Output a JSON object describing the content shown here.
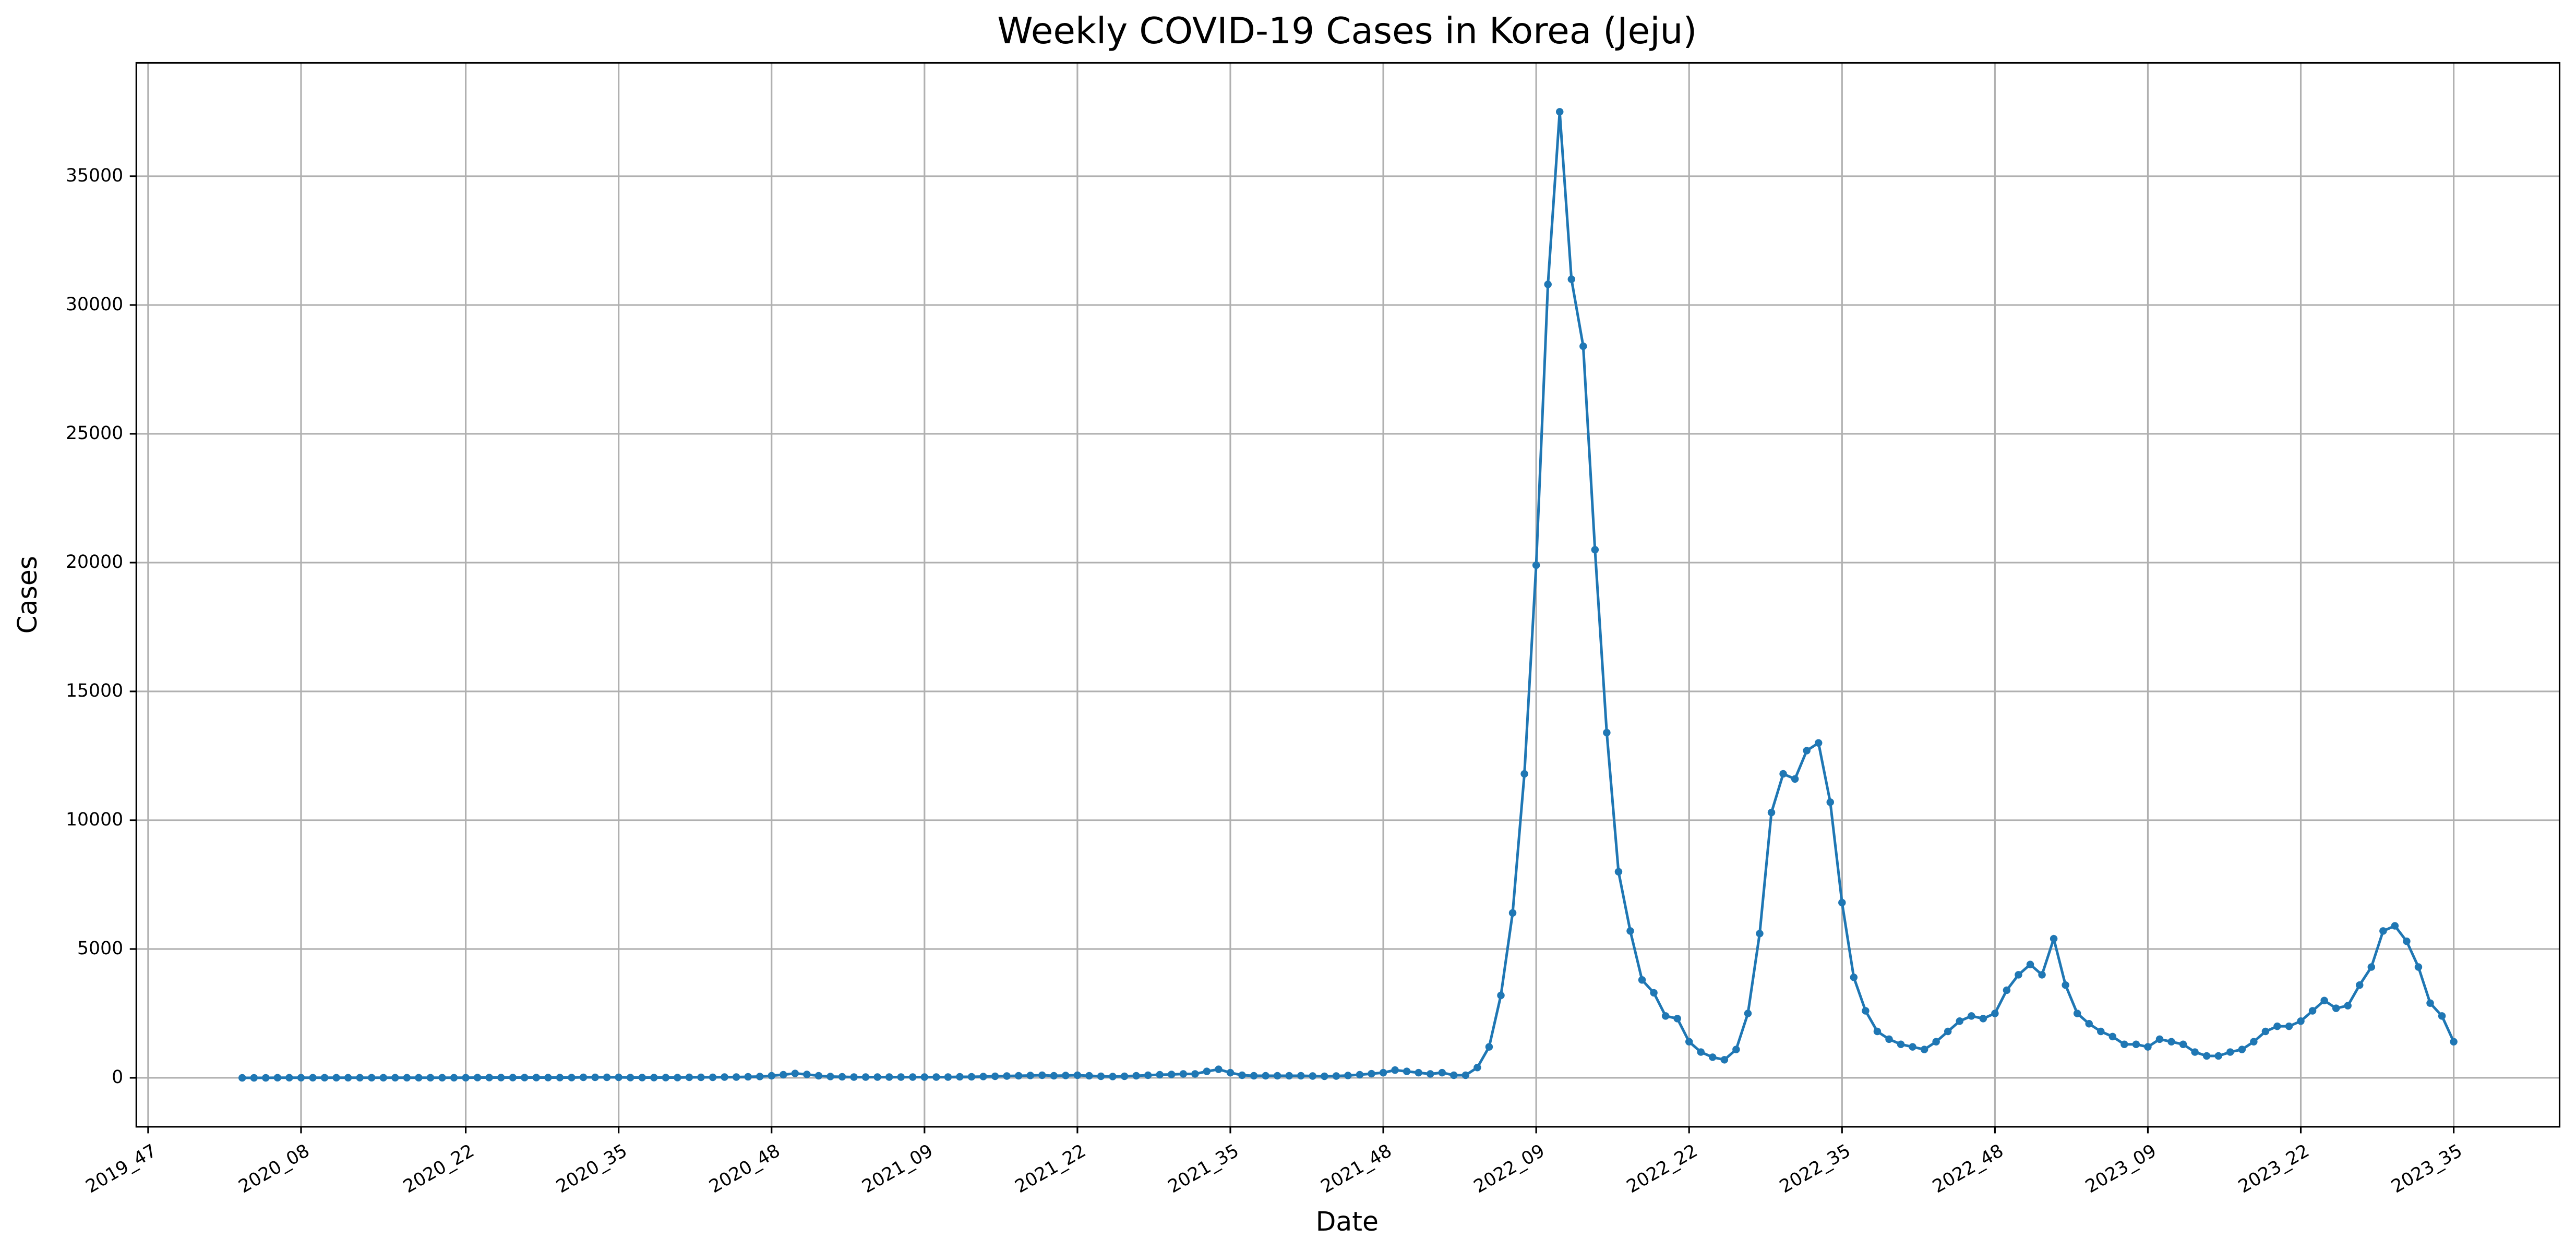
{
  "chart_data": {
    "type": "line",
    "title": "Weekly COVID-19 Cases in Korea (Jeju)",
    "x_label": "Date",
    "y_label": "Cases",
    "color": "#1f77b4",
    "grid": true,
    "x": [
      "2020_03",
      "2020_04",
      "2020_05",
      "2020_06",
      "2020_07",
      "2020_08",
      "2020_09",
      "2020_10",
      "2020_11",
      "2020_12",
      "2020_13",
      "2020_14",
      "2020_15",
      "2020_16",
      "2020_17",
      "2020_18",
      "2020_19",
      "2020_20",
      "2020_21",
      "2020_22",
      "2020_23",
      "2020_24",
      "2020_25",
      "2020_26",
      "2020_27",
      "2020_28",
      "2020_29",
      "2020_30",
      "2020_31",
      "2020_32",
      "2020_33",
      "2020_34",
      "2020_35",
      "2020_36",
      "2020_37",
      "2020_38",
      "2020_39",
      "2020_40",
      "2020_41",
      "2020_42",
      "2020_43",
      "2020_44",
      "2020_45",
      "2020_46",
      "2020_47",
      "2020_48",
      "2020_49",
      "2020_50",
      "2020_51",
      "2020_52",
      "2021_01",
      "2021_02",
      "2021_03",
      "2021_04",
      "2021_05",
      "2021_06",
      "2021_07",
      "2021_08",
      "2021_09",
      "2021_10",
      "2021_11",
      "2021_12",
      "2021_13",
      "2021_14",
      "2021_15",
      "2021_16",
      "2021_17",
      "2021_18",
      "2021_19",
      "2021_20",
      "2021_21",
      "2021_22",
      "2021_23",
      "2021_24",
      "2021_25",
      "2021_26",
      "2021_27",
      "2021_28",
      "2021_29",
      "2021_30",
      "2021_31",
      "2021_32",
      "2021_33",
      "2021_34",
      "2021_35",
      "2021_36",
      "2021_37",
      "2021_38",
      "2021_39",
      "2021_40",
      "2021_41",
      "2021_42",
      "2021_43",
      "2021_44",
      "2021_45",
      "2021_46",
      "2021_47",
      "2021_48",
      "2021_49",
      "2021_50",
      "2021_51",
      "2021_52",
      "2022_01",
      "2022_02",
      "2022_03",
      "2022_04",
      "2022_05",
      "2022_06",
      "2022_07",
      "2022_08",
      "2022_09",
      "2022_10",
      "2022_11",
      "2022_12",
      "2022_13",
      "2022_14",
      "2022_15",
      "2022_16",
      "2022_17",
      "2022_18",
      "2022_19",
      "2022_20",
      "2022_21",
      "2022_22",
      "2022_23",
      "2022_24",
      "2022_25",
      "2022_26",
      "2022_27",
      "2022_28",
      "2022_29",
      "2022_30",
      "2022_31",
      "2022_32",
      "2022_33",
      "2022_34",
      "2022_35",
      "2022_36",
      "2022_37",
      "2022_38",
      "2022_39",
      "2022_40",
      "2022_41",
      "2022_42",
      "2022_43",
      "2022_44",
      "2022_45",
      "2022_46",
      "2022_47",
      "2022_48",
      "2022_49",
      "2022_50",
      "2022_51",
      "2022_52",
      "2023_01",
      "2023_02",
      "2023_03",
      "2023_04",
      "2023_05",
      "2023_06",
      "2023_07",
      "2023_08",
      "2023_09",
      "2023_10",
      "2023_11",
      "2023_12",
      "2023_13",
      "2023_14",
      "2023_15",
      "2023_16",
      "2023_17",
      "2023_18",
      "2023_19",
      "2023_20",
      "2023_21",
      "2023_22",
      "2023_23",
      "2023_24",
      "2023_25",
      "2023_26",
      "2023_27",
      "2023_28",
      "2023_29",
      "2023_30",
      "2023_31",
      "2023_32",
      "2023_33",
      "2023_34",
      "2023_35"
    ],
    "values": [
      0,
      0,
      0,
      5,
      5,
      5,
      5,
      5,
      5,
      5,
      5,
      5,
      5,
      5,
      5,
      5,
      5,
      5,
      5,
      5,
      10,
      10,
      10,
      10,
      10,
      10,
      10,
      10,
      10,
      20,
      20,
      20,
      20,
      10,
      10,
      10,
      10,
      10,
      20,
      20,
      20,
      30,
      30,
      40,
      50,
      80,
      120,
      170,
      130,
      80,
      50,
      40,
      30,
      30,
      30,
      30,
      30,
      30,
      30,
      30,
      30,
      40,
      40,
      50,
      60,
      70,
      80,
      90,
      100,
      80,
      90,
      100,
      80,
      60,
      50,
      60,
      80,
      100,
      120,
      130,
      150,
      150,
      250,
      330,
      200,
      100,
      80,
      80,
      80,
      80,
      80,
      70,
      60,
      70,
      90,
      120,
      160,
      200,
      300,
      250,
      200,
      150,
      200,
      100,
      100,
      400,
      1200,
      3200,
      6400,
      11800,
      19900,
      30800,
      37500,
      31000,
      28400,
      20500,
      13400,
      8000,
      5700,
      3800,
      3300,
      2400,
      2300,
      1400,
      1000,
      800,
      700,
      1100,
      2500,
      5600,
      10300,
      11800,
      11600,
      12700,
      13000,
      10700,
      6800,
      3900,
      2600,
      1800,
      1500,
      1300,
      1200,
      1100,
      1400,
      1800,
      2200,
      2400,
      2300,
      2500,
      3400,
      4000,
      4400,
      4000,
      5400,
      3600,
      2500,
      2100,
      1800,
      1600,
      1300,
      1300,
      1200,
      1500,
      1400,
      1300,
      1000,
      850,
      850,
      1000,
      1100,
      1400,
      1800,
      2000,
      2000,
      2200,
      2600,
      3000,
      2700,
      2800,
      3600,
      4300,
      5700,
      5900,
      5300,
      4300,
      2900,
      2400,
      1400
    ],
    "xlim": [
      "2019_46",
      "2023_44"
    ],
    "xticks": [
      "2019_47",
      "2020_08",
      "2020_22",
      "2020_35",
      "2020_48",
      "2021_09",
      "2021_22",
      "2021_35",
      "2021_48",
      "2022_09",
      "2022_22",
      "2022_35",
      "2022_48",
      "2023_09",
      "2023_22",
      "2023_35"
    ],
    "ylim": [
      -1900,
      39400
    ],
    "yticks": [
      0,
      5000,
      10000,
      15000,
      20000,
      25000,
      30000,
      35000
    ]
  }
}
